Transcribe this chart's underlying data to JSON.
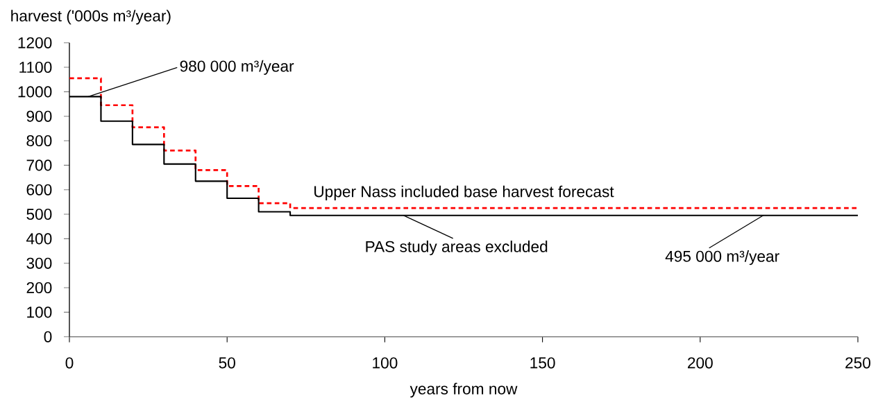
{
  "chart_data": {
    "type": "step",
    "xlabel": "years from now",
    "ylabel": "harvest ('000s m³/year)",
    "x": [
      0,
      10,
      20,
      30,
      40,
      50,
      60,
      70,
      250
    ],
    "series": [
      {
        "name": "Upper Nass included base harvest forecast",
        "color": "#ff0000",
        "line_style": "dashed",
        "values": [
          1055,
          945,
          855,
          760,
          680,
          615,
          545,
          525,
          525
        ]
      },
      {
        "name": "PAS study areas excluded",
        "color": "#000000",
        "line_style": "solid",
        "values": [
          980,
          880,
          785,
          705,
          635,
          565,
          510,
          495,
          495
        ]
      }
    ],
    "annotations": [
      {
        "text": "980 000 m³/year",
        "x": 6,
        "y": 980
      },
      {
        "text": "495 000 m³/year",
        "x": 220,
        "y": 495
      }
    ],
    "xlim": [
      0,
      250
    ],
    "ylim": [
      0,
      1200
    ],
    "xticks": [
      0,
      50,
      100,
      150,
      200,
      250
    ],
    "yticks": [
      0,
      100,
      200,
      300,
      400,
      500,
      600,
      700,
      800,
      900,
      1000,
      1100,
      1200
    ]
  }
}
